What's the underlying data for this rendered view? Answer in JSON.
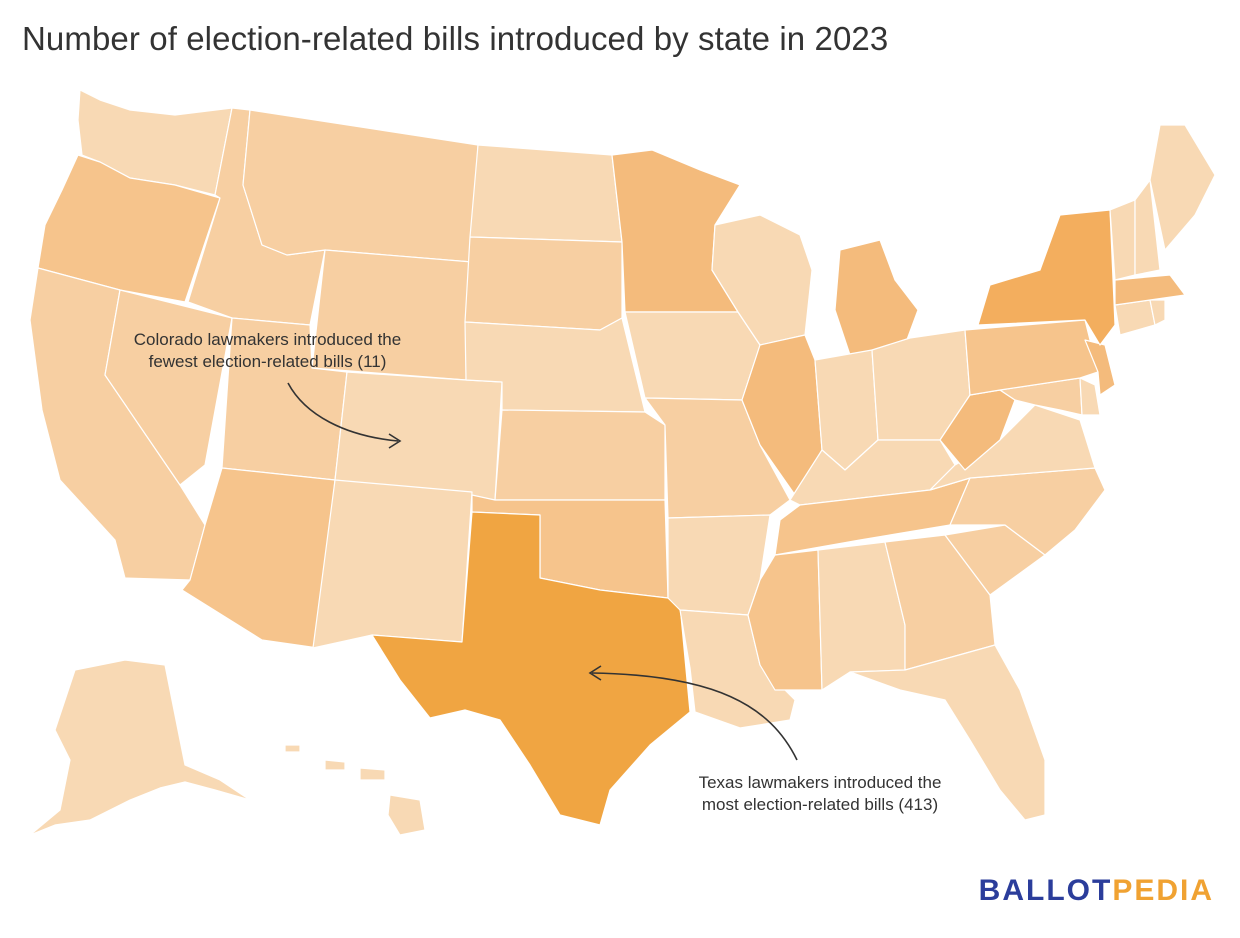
{
  "title": "Number of election-related bills introduced by state in 2023",
  "annotations": {
    "colorado": {
      "line1": "Colorado lawmakers introduced the",
      "line2": "fewest election-related bills (11)"
    },
    "texas": {
      "line1": "Texas lawmakers introduced the",
      "line2": "most election-related bills (413)"
    }
  },
  "logo": {
    "part1": "BALLOT",
    "part2": "PEDIA",
    "color1": "#2b3d9b",
    "color2": "#f0a232"
  },
  "colors": {
    "lightest": "#f8d9b4",
    "light": "#f7cfa2",
    "medium": "#f6c48c",
    "strong": "#f4bb7c",
    "darker": "#f3ae5e",
    "darkest": "#f0a542",
    "arrow": "#333333"
  },
  "chart_data": {
    "type": "choropleth",
    "region": "United States",
    "metric": "election-related bills introduced in 2023",
    "highlights": [
      {
        "state": "Colorado",
        "value": 11,
        "note": "fewest"
      },
      {
        "state": "Texas",
        "value": 413,
        "note": "most"
      }
    ],
    "shading": {
      "Washington": "lightest",
      "Oregon": "medium",
      "California": "light",
      "Idaho": "light",
      "Nevada": "light",
      "Montana": "light",
      "Wyoming": "light",
      "Utah": "light",
      "Arizona": "medium",
      "Colorado": "lightest",
      "New Mexico": "lightest",
      "North Dakota": "lightest",
      "South Dakota": "light",
      "Nebraska": "lightest",
      "Kansas": "light",
      "Oklahoma": "medium",
      "Texas": "darkest",
      "Minnesota": "strong",
      "Iowa": "lightest",
      "Missouri": "light",
      "Arkansas": "lightest",
      "Louisiana": "lightest",
      "Wisconsin": "lightest",
      "Illinois": "strong",
      "Michigan": "strong",
      "Indiana": "lightest",
      "Ohio": "lightest",
      "Kentucky": "lightest",
      "Tennessee": "medium",
      "Mississippi": "medium",
      "Alabama": "lightest",
      "Georgia": "light",
      "Florida": "lightest",
      "South Carolina": "light",
      "North Carolina": "light",
      "Virginia": "lightest",
      "West Virginia": "strong",
      "Maryland": "light",
      "Delaware": "lightest",
      "Pennsylvania": "medium",
      "New Jersey": "strong",
      "New York": "darker",
      "Connecticut": "lightest",
      "Rhode Island": "lightest",
      "Massachusetts": "strong",
      "Vermont": "lightest",
      "New Hampshire": "lightest",
      "Maine": "lightest",
      "Alaska": "lightest",
      "Hawaii": "lightest"
    }
  }
}
